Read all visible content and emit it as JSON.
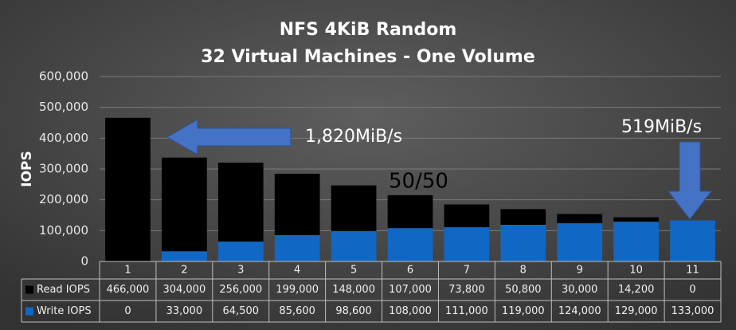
{
  "chart_data": {
    "type": "stacked_bar",
    "title": "NFS 4KiB Random",
    "subtitle": "32 Virtual Machines - One Volume",
    "y_label": "IOPS",
    "categories": [
      "1",
      "2",
      "3",
      "4",
      "5",
      "6",
      "7",
      "8",
      "9",
      "10",
      "11"
    ],
    "series": [
      {
        "name": "Read IOPS",
        "color": "#000000",
        "values": [
          466000,
          304000,
          256000,
          199000,
          148000,
          107000,
          73800,
          50800,
          30000,
          14200,
          0
        ],
        "value_labels": [
          "466,000",
          "304,000",
          "256,000",
          "199,000",
          "148,000",
          "107,000",
          "73,800",
          "50,800",
          "30,000",
          "14,200",
          "0"
        ]
      },
      {
        "name": "Write IOPS",
        "color": "#1068c4",
        "values": [
          0,
          33000,
          64500,
          85600,
          98600,
          108000,
          111000,
          119000,
          124000,
          129000,
          133000
        ],
        "value_labels": [
          "0",
          "33,000",
          "64,500",
          "85,600",
          "98,600",
          "108,000",
          "111,000",
          "119,000",
          "124,000",
          "129,000",
          "133,000"
        ]
      }
    ],
    "stack_order": [
      "Write IOPS",
      "Read IOPS"
    ],
    "ylim": [
      0,
      600000
    ],
    "yticks": [
      0,
      {
        "value": 100000,
        "label": "100,000"
      },
      {
        "value": 200000,
        "label": "200,000"
      },
      {
        "value": 300000,
        "label": "300,000"
      },
      {
        "value": 400000,
        "label": "400,000"
      },
      {
        "value": 500000,
        "label": "500,000"
      },
      {
        "value": 600000,
        "label": "600,000"
      }
    ],
    "grid": true,
    "annotations": [
      "1,820MiB/s",
      "519MiB/s",
      "50/50"
    ]
  }
}
